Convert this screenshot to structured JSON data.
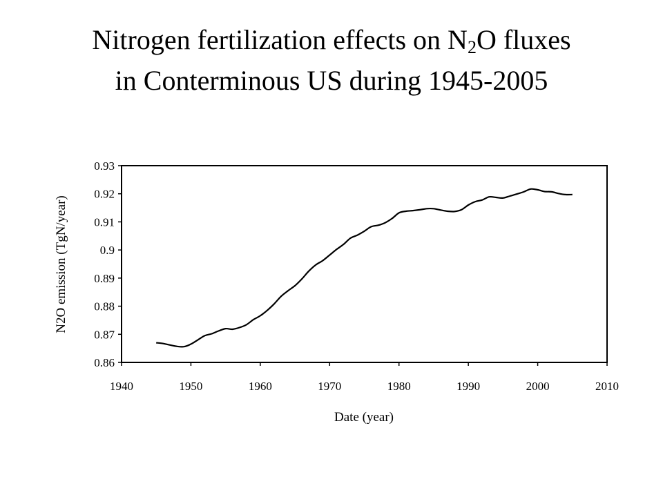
{
  "title": {
    "line1_pre": "Nitrogen fertilization effects on N",
    "line1_sub": "2",
    "line1_post": "O fluxes",
    "line2": "in Conterminous US during 1945-2005"
  },
  "chart_data": {
    "type": "line",
    "xlabel": "Date (year)",
    "ylabel": "N2O emission (TgN/year)",
    "xlim": [
      1940,
      2010
    ],
    "ylim": [
      0.86,
      0.93
    ],
    "xticks": [
      "1940",
      "1950",
      "1960",
      "1970",
      "1980",
      "1990",
      "2000",
      "2010"
    ],
    "yticks": [
      "0.86",
      "0.87",
      "0.88",
      "0.89",
      "0.9",
      "0.91",
      "0.92",
      "0.93"
    ],
    "grid": false,
    "series": [
      {
        "x": [
          1945,
          1946,
          1947,
          1948,
          1949,
          1950,
          1951,
          1952,
          1953,
          1954,
          1955,
          1956,
          1957,
          1958,
          1959,
          1960,
          1961,
          1962,
          1963,
          1964,
          1965,
          1966,
          1967,
          1968,
          1969,
          1970,
          1971,
          1972,
          1973,
          1974,
          1975,
          1976,
          1977,
          1978,
          1979,
          1980,
          1981,
          1982,
          1983,
          1984,
          1985,
          1986,
          1987,
          1988,
          1989,
          1990,
          1991,
          1992,
          1993,
          1994,
          1995,
          1996,
          1997,
          1998,
          1999,
          2000,
          2001,
          2002,
          2003,
          2004,
          2005
        ],
        "y": [
          0.867,
          0.8667,
          0.8662,
          0.8657,
          0.8656,
          0.8665,
          0.868,
          0.8695,
          0.8702,
          0.8712,
          0.872,
          0.8718,
          0.8724,
          0.8734,
          0.8752,
          0.8766,
          0.8785,
          0.8808,
          0.8835,
          0.8855,
          0.8873,
          0.8897,
          0.8925,
          0.8947,
          0.8962,
          0.8982,
          0.9002,
          0.902,
          0.9042,
          0.9053,
          0.9067,
          0.9083,
          0.9088,
          0.9097,
          0.9112,
          0.9132,
          0.9138,
          0.914,
          0.9143,
          0.9147,
          0.9147,
          0.9142,
          0.9138,
          0.9137,
          0.9143,
          0.916,
          0.9172,
          0.9178,
          0.9189,
          0.9187,
          0.9185,
          0.9192,
          0.9199,
          0.9207,
          0.9217,
          0.9214,
          0.9208,
          0.9207,
          0.9201,
          0.9197,
          0.9197
        ],
        "color": "#000000"
      }
    ]
  }
}
